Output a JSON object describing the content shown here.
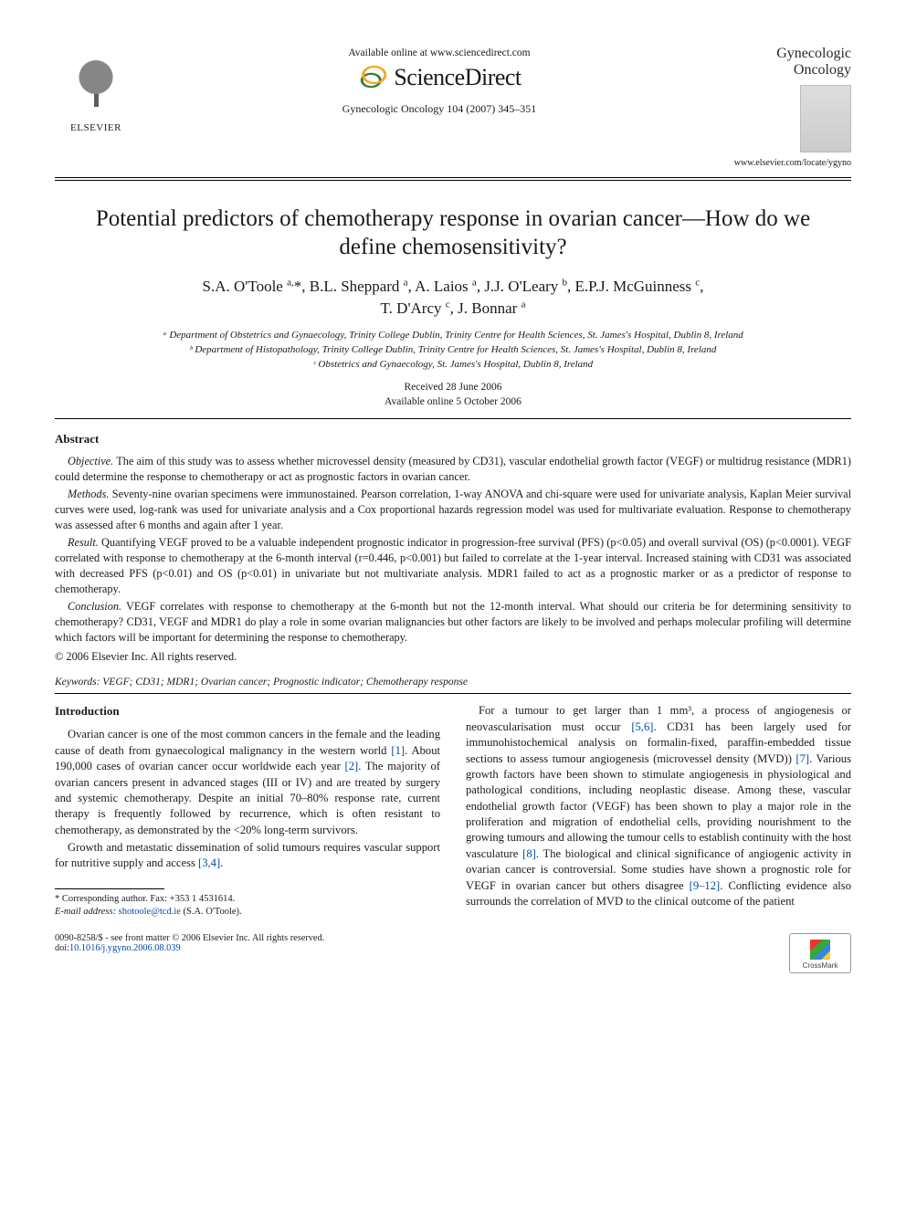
{
  "header": {
    "publisher_label": "ELSEVIER",
    "available_line": "Available online at www.sciencedirect.com",
    "sd_brand": "ScienceDirect",
    "citation": "Gynecologic Oncology 104 (2007) 345–351",
    "journal_name_l1": "Gynecologic",
    "journal_name_l2": "Oncology",
    "journal_url": "www.elsevier.com/locate/ygyno",
    "crossmark_label": "CrossMark"
  },
  "article": {
    "title": "Potential predictors of chemotherapy response in ovarian cancer—How do we define chemosensitivity?",
    "authors_html": "S.A. O'Toole <span class='sup'>a,</span>*, B.L. Sheppard <span class='sup'>a</span>, A. Laios <span class='sup'>a</span>, J.J. O'Leary <span class='sup'>b</span>, E.P.J. McGuinness <span class='sup'>c</span>,<br>T. D'Arcy <span class='sup'>c</span>, J. Bonnar <span class='sup'>a</span>",
    "affiliations": [
      "ᵃ Department of Obstetrics and Gynaecology, Trinity College Dublin, Trinity Centre for Health Sciences, St. James's Hospital, Dublin 8, Ireland",
      "ᵇ Department of Histopathology, Trinity College Dublin, Trinity Centre for Health Sciences, St. James's Hospital, Dublin 8, Ireland",
      "ᶜ Obstetrics and Gynaecology, St. James's Hospital, Dublin 8, Ireland"
    ],
    "received": "Received 28 June 2006",
    "online": "Available online 5 October 2006"
  },
  "abstract": {
    "heading": "Abstract",
    "objective_label": "Objective.",
    "objective": " The aim of this study was to assess whether microvessel density (measured by CD31), vascular endothelial growth factor (VEGF) or multidrug resistance (MDR1) could determine the response to chemotherapy or act as prognostic factors in ovarian cancer.",
    "methods_label": "Methods.",
    "methods": " Seventy-nine ovarian specimens were immunostained. Pearson correlation, 1-way ANOVA and chi-square were used for univariate analysis, Kaplan Meier survival curves were used, log-rank was used for univariate analysis and a Cox proportional hazards regression model was used for multivariate evaluation. Response to chemotherapy was assessed after 6 months and again after 1 year.",
    "result_label": "Result.",
    "result": " Quantifying VEGF proved to be a valuable independent prognostic indicator in progression-free survival (PFS) (p<0.05) and overall survival (OS) (p<0.0001). VEGF correlated with response to chemotherapy at the 6-month interval (r=0.446, p<0.001) but failed to correlate at the 1-year interval. Increased staining with CD31 was associated with decreased PFS (p<0.01) and OS (p<0.01) in univariate but not multivariate analysis. MDR1 failed to act as a prognostic marker or as a predictor of response to chemotherapy.",
    "conclusion_label": "Conclusion.",
    "conclusion": " VEGF correlates with response to chemotherapy at the 6-month but not the 12-month interval. What should our criteria be for determining sensitivity to chemotherapy? CD31, VEGF and MDR1 do play a role in some ovarian malignancies but other factors are likely to be involved and perhaps molecular profiling will determine which factors will be important for determining the response to chemotherapy.",
    "copyright": "© 2006 Elsevier Inc. All rights reserved."
  },
  "keywords": {
    "label": "Keywords:",
    "text": " VEGF; CD31; MDR1; Ovarian cancer; Prognostic indicator; Chemotherapy response"
  },
  "intro": {
    "heading": "Introduction",
    "p1": "Ovarian cancer is one of the most common cancers in the female and the leading cause of death from gynaecological malignancy in the western world [1]. About 190,000 cases of ovarian cancer occur worldwide each year [2]. The majority of ovarian cancers present in advanced stages (III or IV) and are treated by surgery and systemic chemotherapy. Despite an initial 70–80% response rate, current therapy is frequently followed by recurrence, which is often resistant to chemotherapy, as demonstrated by the <20% long-term survivors.",
    "p2": "Growth and metastatic dissemination of solid tumours requires vascular support for nutritive supply and access [3,4].",
    "p3": "For a tumour to get larger than 1 mm³, a process of angiogenesis or neovascularisation must occur [5,6]. CD31 has been largely used for immunohistochemical analysis on formalin-fixed, paraffin-embedded tissue sections to assess tumour angiogenesis (microvessel density (MVD)) [7]. Various growth factors have been shown to stimulate angiogenesis in physiological and pathological conditions, including neoplastic disease. Among these, vascular endothelial growth factor (VEGF) has been shown to play a major role in the proliferation and migration of endothelial cells, providing nourishment to the growing tumours and allowing the tumour cells to establish continuity with the host vasculature [8]. The biological and clinical significance of angiogenic activity in ovarian cancer is controversial. Some studies have shown a prognostic role for VEGF in ovarian cancer but others disagree [9–12]. Conflicting evidence also surrounds the correlation of MVD to the clinical outcome of the patient"
  },
  "footnote": {
    "corr": "* Corresponding author. Fax: +353 1 4531614.",
    "email_label": "E-mail address:",
    "email": " shotoole@tcd.ie",
    "email_tail": " (S.A. O'Toole)."
  },
  "footer": {
    "left_l1": "0090-8258/$ - see front matter © 2006 Elsevier Inc. All rights reserved.",
    "doi_label": "doi:",
    "doi": "10.1016/j.ygyno.2006.08.039"
  },
  "colors": {
    "link": "#0048a7",
    "text": "#1a1a1a"
  }
}
